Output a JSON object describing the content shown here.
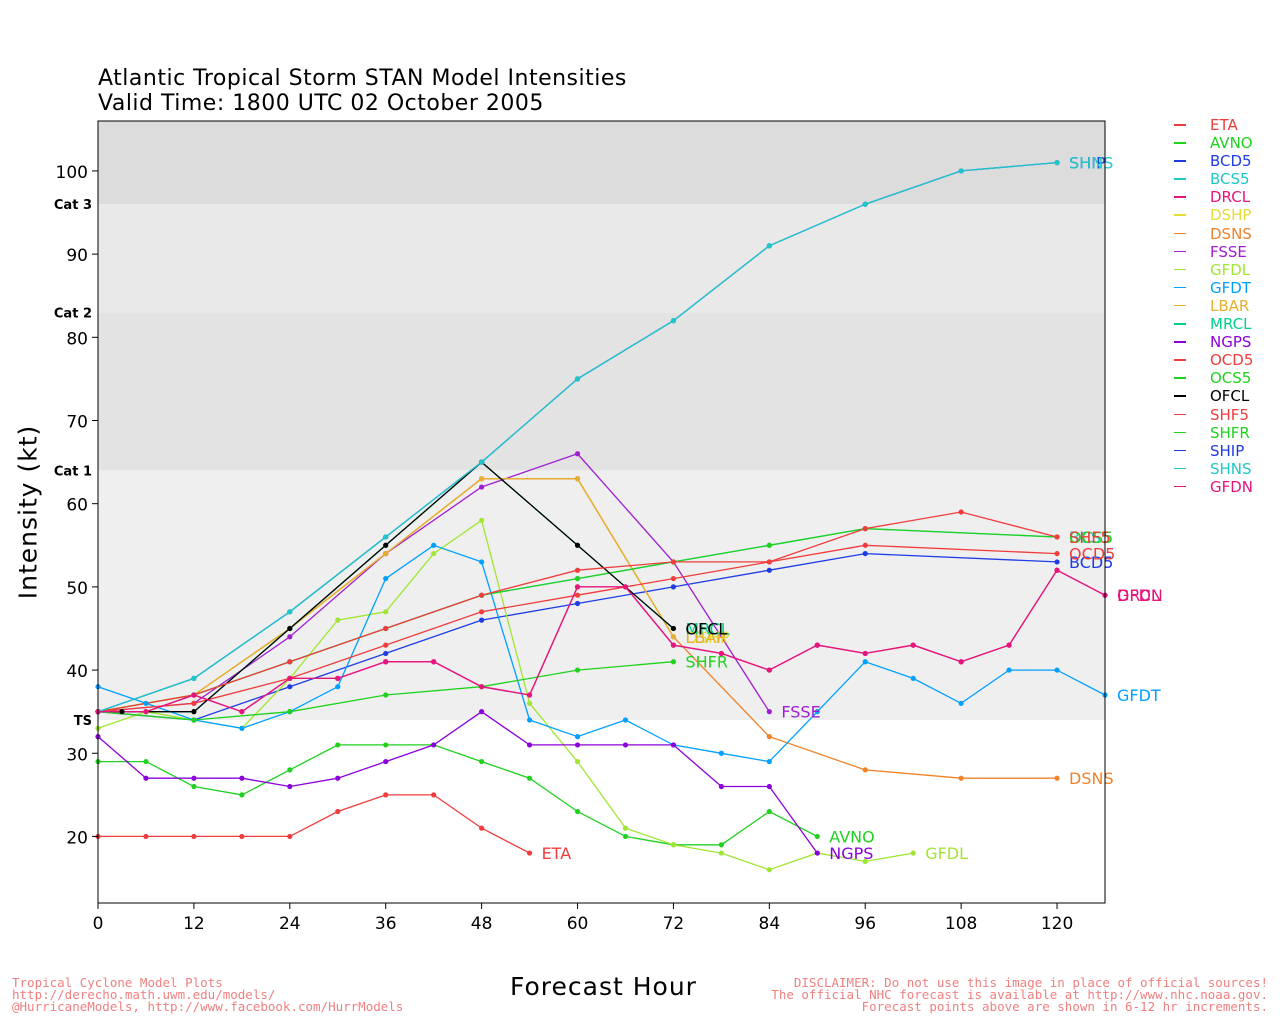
{
  "title": "Atlantic Tropical Storm STAN Model Intensities",
  "subtitle": "Valid Time: 1800 UTC 02 October 2005",
  "footer_left": [
    "Tropical Cyclone Model Plots",
    "http://derecho.math.uwm.edu/models/",
    "@HurricaneModels, http://www.facebook.com/HurrModels"
  ],
  "footer_right": [
    "DISCLAIMER: Do not use this image in place of official sources!",
    "The official NHC forecast is available at http://www.nhc.noaa.gov.",
    "Forecast points above are shown in 6-12 hr increments."
  ],
  "chart_data": {
    "type": "line",
    "xlabel": "Forecast Hour",
    "ylabel": "Intensity (kt)",
    "xlim": [
      0,
      126
    ],
    "ylim": [
      12,
      106
    ],
    "xticks": [
      0,
      12,
      24,
      36,
      48,
      60,
      72,
      84,
      96,
      108,
      120
    ],
    "yticks": [
      20,
      30,
      40,
      50,
      60,
      70,
      80,
      90,
      100
    ],
    "category_bands": [
      {
        "label": "TS",
        "from": 34,
        "to": 64,
        "color": "#efefef"
      },
      {
        "label": "Cat 1",
        "from": 64,
        "to": 83,
        "color": "#e3e3e3"
      },
      {
        "label": "Cat 2",
        "from": 83,
        "to": 96,
        "color": "#e9e9e9"
      },
      {
        "label": "Cat 3",
        "from": 96,
        "to": 106,
        "color": "#dcdcdc"
      }
    ],
    "series": [
      {
        "name": "ETA",
        "color": "#f03c3c",
        "points": [
          [
            0,
            20
          ],
          [
            6,
            20
          ],
          [
            12,
            20
          ],
          [
            18,
            20
          ],
          [
            24,
            20
          ],
          [
            30,
            23
          ],
          [
            36,
            25
          ],
          [
            42,
            25
          ],
          [
            48,
            21
          ],
          [
            54,
            18
          ]
        ]
      },
      {
        "name": "AVNO",
        "color": "#1ed21e",
        "points": [
          [
            0,
            29
          ],
          [
            6,
            29
          ],
          [
            12,
            26
          ],
          [
            18,
            25
          ],
          [
            24,
            28
          ],
          [
            30,
            31
          ],
          [
            36,
            31
          ],
          [
            42,
            31
          ],
          [
            48,
            29
          ],
          [
            54,
            27
          ],
          [
            60,
            23
          ],
          [
            66,
            20
          ],
          [
            72,
            19
          ],
          [
            78,
            19
          ],
          [
            84,
            23
          ],
          [
            90,
            20
          ]
        ]
      },
      {
        "name": "BCD5",
        "color": "#1e3ce6",
        "points": [
          [
            0,
            35
          ],
          [
            12,
            34
          ],
          [
            24,
            38
          ],
          [
            36,
            42
          ],
          [
            48,
            46
          ],
          [
            60,
            48
          ],
          [
            72,
            50
          ],
          [
            84,
            52
          ],
          [
            96,
            54
          ],
          [
            120,
            53
          ]
        ]
      },
      {
        "name": "BCS5",
        "color": "#1ec8c8",
        "points": [
          [
            0,
            35
          ],
          [
            12,
            37
          ],
          [
            24,
            41
          ],
          [
            36,
            45
          ],
          [
            48,
            49
          ],
          [
            60,
            51
          ],
          [
            72,
            53
          ],
          [
            84,
            55
          ],
          [
            96,
            57
          ],
          [
            120,
            56
          ]
        ]
      },
      {
        "name": "DRCL",
        "color": "#e6147d",
        "points": [
          [
            0,
            35
          ],
          [
            6,
            35
          ],
          [
            12,
            37
          ],
          [
            18,
            35
          ],
          [
            24,
            39
          ],
          [
            30,
            39
          ],
          [
            36,
            41
          ],
          [
            42,
            41
          ],
          [
            48,
            38
          ],
          [
            54,
            37
          ],
          [
            60,
            50
          ],
          [
            66,
            50
          ],
          [
            72,
            43
          ],
          [
            78,
            42
          ],
          [
            84,
            40
          ],
          [
            90,
            43
          ],
          [
            96,
            42
          ],
          [
            102,
            43
          ],
          [
            108,
            41
          ],
          [
            114,
            43
          ],
          [
            120,
            52
          ],
          [
            126,
            49
          ]
        ]
      },
      {
        "name": "DSHP",
        "color": "#e6dc32",
        "points": [
          [
            0,
            35
          ],
          [
            12,
            37
          ],
          [
            24,
            45
          ],
          [
            36,
            54
          ],
          [
            48,
            63
          ],
          [
            60,
            63
          ],
          [
            72,
            44
          ]
        ]
      },
      {
        "name": "DSNS",
        "color": "#f08228",
        "points": [
          [
            0,
            35
          ],
          [
            12,
            37
          ],
          [
            24,
            45
          ],
          [
            36,
            54
          ],
          [
            48,
            63
          ],
          [
            60,
            63
          ],
          [
            72,
            44
          ],
          [
            84,
            32
          ],
          [
            96,
            28
          ],
          [
            108,
            27
          ],
          [
            120,
            27
          ]
        ]
      },
      {
        "name": "FSSE",
        "color": "#a01ed2",
        "points": [
          [
            0,
            35
          ],
          [
            12,
            36
          ],
          [
            24,
            44
          ],
          [
            36,
            54
          ],
          [
            48,
            62
          ],
          [
            60,
            66
          ],
          [
            72,
            53
          ],
          [
            84,
            35
          ]
        ]
      },
      {
        "name": "GFDL",
        "color": "#a0e632",
        "points": [
          [
            0,
            33
          ],
          [
            6,
            35
          ],
          [
            12,
            34
          ],
          [
            18,
            33
          ],
          [
            24,
            39
          ],
          [
            30,
            46
          ],
          [
            36,
            47
          ],
          [
            42,
            54
          ],
          [
            48,
            58
          ],
          [
            54,
            36
          ],
          [
            60,
            29
          ],
          [
            66,
            21
          ],
          [
            72,
            19
          ],
          [
            78,
            18
          ],
          [
            84,
            16
          ],
          [
            90,
            18
          ],
          [
            96,
            17
          ],
          [
            102,
            18
          ]
        ]
      },
      {
        "name": "GFDT",
        "color": "#00a0ff",
        "points": [
          [
            0,
            38
          ],
          [
            6,
            36
          ],
          [
            12,
            34
          ],
          [
            18,
            33
          ],
          [
            24,
            35
          ],
          [
            30,
            38
          ],
          [
            36,
            51
          ],
          [
            42,
            55
          ],
          [
            48,
            53
          ],
          [
            54,
            34
          ],
          [
            60,
            32
          ],
          [
            66,
            34
          ],
          [
            72,
            31
          ],
          [
            78,
            30
          ],
          [
            84,
            29
          ],
          [
            90,
            35
          ],
          [
            96,
            41
          ],
          [
            102,
            39
          ],
          [
            108,
            36
          ],
          [
            114,
            40
          ],
          [
            120,
            40
          ],
          [
            126,
            37
          ]
        ]
      },
      {
        "name": "LBAR",
        "color": "#e6af2d",
        "points": [
          [
            0,
            35
          ],
          [
            12,
            37
          ],
          [
            24,
            45
          ],
          [
            36,
            54
          ],
          [
            48,
            63
          ],
          [
            60,
            63
          ],
          [
            72,
            44
          ]
        ]
      },
      {
        "name": "MRCL",
        "color": "#00d28c",
        "points": [
          [
            0,
            35
          ],
          [
            12,
            35
          ],
          [
            24,
            45
          ],
          [
            36,
            55
          ],
          [
            48,
            65
          ],
          [
            60,
            55
          ],
          [
            72,
            45
          ]
        ]
      },
      {
        "name": "NGPS",
        "color": "#8c00dc",
        "points": [
          [
            0,
            32
          ],
          [
            6,
            27
          ],
          [
            12,
            27
          ],
          [
            18,
            27
          ],
          [
            24,
            26
          ],
          [
            30,
            27
          ],
          [
            36,
            29
          ],
          [
            42,
            31
          ],
          [
            48,
            35
          ],
          [
            54,
            31
          ],
          [
            60,
            31
          ],
          [
            66,
            31
          ],
          [
            72,
            31
          ],
          [
            78,
            26
          ],
          [
            84,
            26
          ],
          [
            90,
            18
          ]
        ]
      },
      {
        "name": "OCD5",
        "color": "#f03c3c",
        "points": [
          [
            0,
            35
          ],
          [
            12,
            36
          ],
          [
            24,
            39
          ],
          [
            36,
            43
          ],
          [
            48,
            47
          ],
          [
            60,
            49
          ],
          [
            72,
            51
          ],
          [
            84,
            53
          ],
          [
            96,
            55
          ],
          [
            120,
            54
          ]
        ]
      },
      {
        "name": "OCS5",
        "color": "#1ed21e",
        "points": [
          [
            0,
            35
          ],
          [
            12,
            37
          ],
          [
            24,
            41
          ],
          [
            36,
            45
          ],
          [
            48,
            49
          ],
          [
            60,
            51
          ],
          [
            72,
            53
          ],
          [
            84,
            55
          ],
          [
            96,
            57
          ],
          [
            120,
            56
          ]
        ]
      },
      {
        "name": "OFCL",
        "color": "#000000",
        "points": [
          [
            0,
            35
          ],
          [
            3,
            35
          ],
          [
            12,
            35
          ],
          [
            24,
            45
          ],
          [
            36,
            55
          ],
          [
            48,
            65
          ],
          [
            60,
            55
          ],
          [
            72,
            45
          ]
        ]
      },
      {
        "name": "SHF5",
        "color": "#f03c3c",
        "points": [
          [
            0,
            35
          ],
          [
            12,
            37
          ],
          [
            24,
            41
          ],
          [
            36,
            45
          ],
          [
            48,
            49
          ],
          [
            60,
            52
          ],
          [
            72,
            53
          ],
          [
            84,
            53
          ],
          [
            96,
            57
          ],
          [
            108,
            59
          ],
          [
            120,
            56
          ]
        ]
      },
      {
        "name": "SHFR",
        "color": "#1ed21e",
        "points": [
          [
            0,
            35
          ],
          [
            12,
            34
          ],
          [
            24,
            35
          ],
          [
            36,
            37
          ],
          [
            48,
            38
          ],
          [
            60,
            40
          ],
          [
            72,
            41
          ]
        ]
      },
      {
        "name": "SHIP",
        "color": "#1e3ce6",
        "points": [
          [
            0,
            35
          ],
          [
            12,
            39
          ],
          [
            24,
            47
          ],
          [
            36,
            56
          ],
          [
            48,
            65
          ],
          [
            60,
            75
          ],
          [
            72,
            82
          ],
          [
            84,
            91
          ],
          [
            96,
            96
          ],
          [
            108,
            100
          ],
          [
            120,
            101
          ]
        ]
      },
      {
        "name": "SHNS",
        "color": "#1ec8c8",
        "points": [
          [
            0,
            35
          ],
          [
            12,
            39
          ],
          [
            24,
            47
          ],
          [
            36,
            56
          ],
          [
            48,
            65
          ],
          [
            60,
            75
          ],
          [
            72,
            82
          ],
          [
            84,
            91
          ],
          [
            96,
            96
          ],
          [
            108,
            100
          ],
          [
            120,
            101
          ]
        ]
      },
      {
        "name": "GFDN",
        "color": "#e6147d",
        "points": [
          [
            0,
            35
          ],
          [
            6,
            35
          ],
          [
            12,
            37
          ],
          [
            18,
            35
          ],
          [
            24,
            39
          ],
          [
            30,
            39
          ],
          [
            36,
            41
          ],
          [
            42,
            41
          ],
          [
            48,
            38
          ],
          [
            54,
            37
          ],
          [
            60,
            50
          ],
          [
            66,
            50
          ],
          [
            72,
            43
          ],
          [
            78,
            42
          ],
          [
            84,
            40
          ],
          [
            90,
            43
          ],
          [
            96,
            42
          ],
          [
            102,
            43
          ],
          [
            108,
            41
          ],
          [
            114,
            43
          ],
          [
            120,
            52
          ],
          [
            126,
            49
          ]
        ]
      }
    ]
  }
}
